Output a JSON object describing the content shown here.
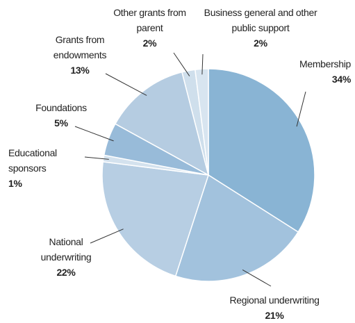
{
  "chart_data": {
    "type": "pie",
    "categories": [
      "Membership",
      "Regional underwriting",
      "National underwriting",
      "Educational sponsors",
      "Foundations",
      "Grants from endowments",
      "Other grants from parent",
      "Business general and other public support"
    ],
    "values": [
      34,
      21,
      22,
      1,
      5,
      13,
      2,
      2
    ],
    "value_labels": [
      "34%",
      "21%",
      "22%",
      "1%",
      "5%",
      "13%",
      "2%",
      "2%"
    ],
    "colors": [
      "#89b4d4",
      "#a2c2dd",
      "#b7cee3",
      "#d4e2ee",
      "#98bbd9",
      "#b5cce1",
      "#cfdfec",
      "#d8e5f0"
    ]
  }
}
